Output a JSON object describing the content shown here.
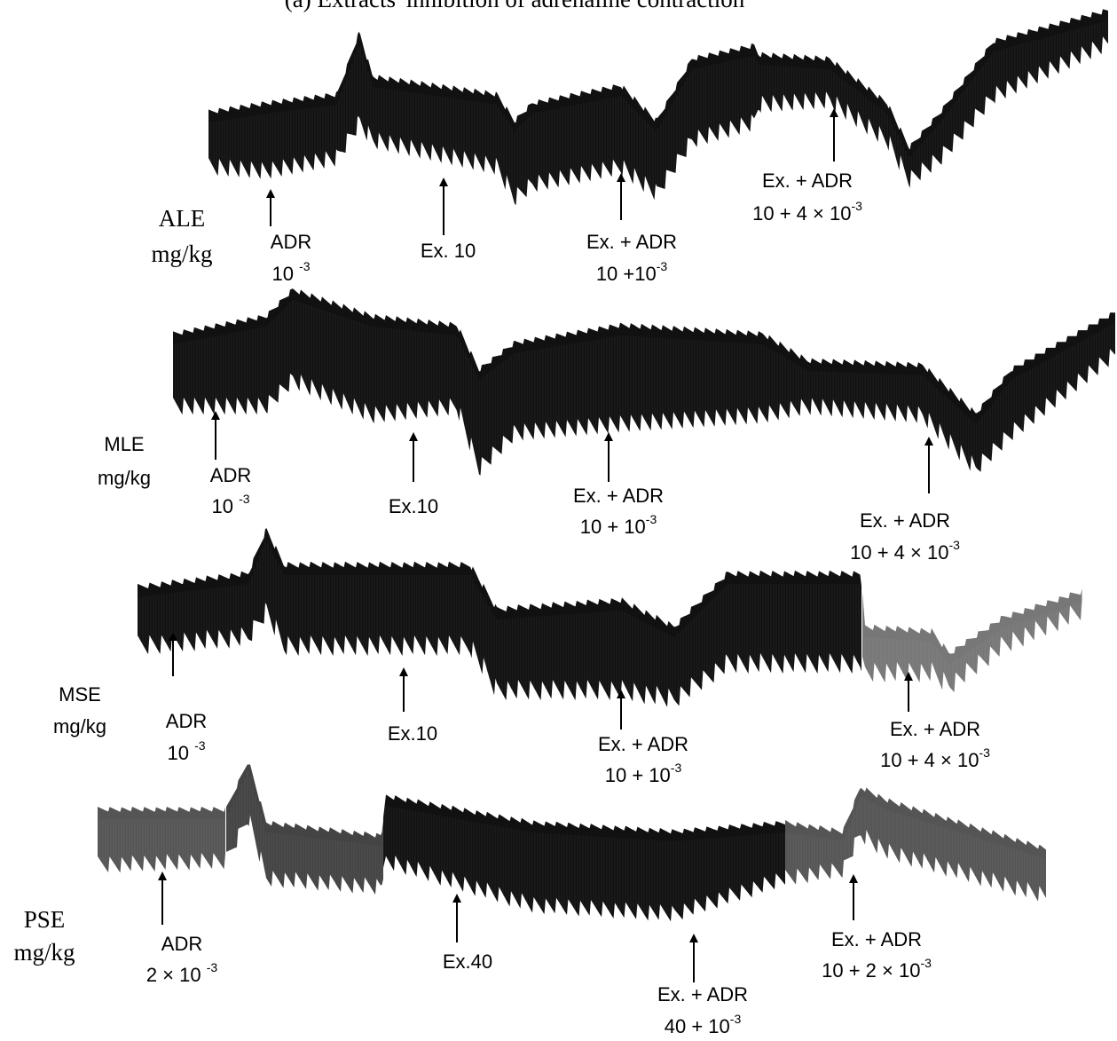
{
  "title": "(a) Extracts' inhibition of adrenaline contraction",
  "panels": [
    {
      "label": [
        "ALE",
        "mg/kg"
      ],
      "annotations": [
        {
          "lines": [
            "ADR",
            "10 "
          ],
          "sup": "-3"
        },
        {
          "lines": [
            "Ex. 10"
          ]
        },
        {
          "lines": [
            "Ex. + ADR",
            "10 +10"
          ],
          "sup": "-3"
        },
        {
          "lines": [
            "Ex. + ADR",
            "10 + 4 × 10"
          ],
          "sup": "-3"
        }
      ]
    },
    {
      "label": [
        "MLE",
        "mg/kg"
      ],
      "annotations": [
        {
          "lines": [
            "ADR",
            "10 "
          ],
          "sup": "-3"
        },
        {
          "lines": [
            "Ex.10"
          ]
        },
        {
          "lines": [
            "Ex. + ADR",
            "10 + 10"
          ],
          "sup": "-3"
        },
        {
          "lines": [
            "Ex. + ADR",
            "10 + 4 × 10"
          ],
          "sup": "-3"
        }
      ]
    },
    {
      "label": [
        "MSE",
        "mg/kg"
      ],
      "annotations": [
        {
          "lines": [
            "ADR",
            "10 "
          ],
          "sup": "-3"
        },
        {
          "lines": [
            "Ex.10"
          ]
        },
        {
          "lines": [
            "Ex. + ADR",
            "10 + 10"
          ],
          "sup": "-3"
        },
        {
          "lines": [
            "Ex. + ADR",
            "10 + 4 × 10"
          ],
          "sup": "-3"
        }
      ]
    },
    {
      "label": [
        "PSE",
        "mg/kg"
      ],
      "annotations": [
        {
          "lines": [
            "ADR",
            "2 × 10 "
          ],
          "sup": "-3"
        },
        {
          "lines": [
            "Ex.40"
          ]
        },
        {
          "lines": [
            "Ex. + ADR",
            "40 + 10"
          ],
          "sup": "-3"
        },
        {
          "lines": [
            "Ex. + ADR",
            "10 + 2 × 10"
          ],
          "sup": "-3"
        }
      ]
    }
  ]
}
